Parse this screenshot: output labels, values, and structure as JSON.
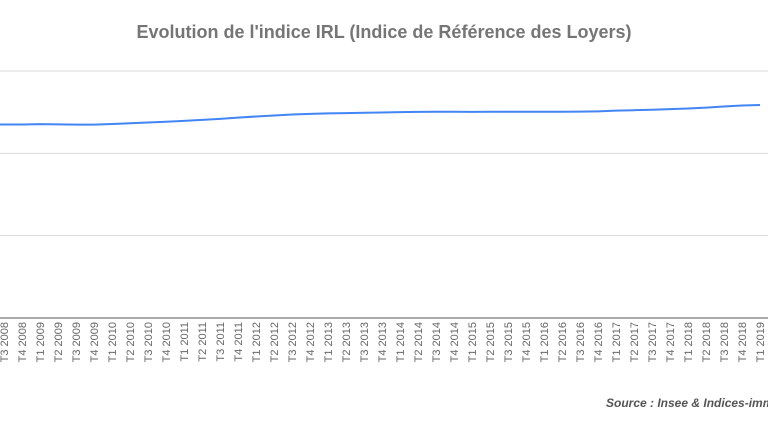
{
  "chart_data": {
    "type": "line",
    "title": "Evolution de l'indice IRL (Indice de Référence des Loyers)",
    "xlabel": "",
    "ylabel": "",
    "ylim": [
      0,
      150
    ],
    "grid": true,
    "legend": "none",
    "line_color": "#4285f4",
    "categories": [
      "T3 2008",
      "T4 2008",
      "T1 2009",
      "T2 2009",
      "T3 2009",
      "T4 2009",
      "T1 2010",
      "T2 2010",
      "T3 2010",
      "T4 2010",
      "T1 2011",
      "T2 2011",
      "T3 2011",
      "T4 2011",
      "T1 2012",
      "T2 2012",
      "T3 2012",
      "T4 2012",
      "T1 2013",
      "T2 2013",
      "T3 2013",
      "T4 2013",
      "T1 2014",
      "T2 2014",
      "T3 2014",
      "T4 2014",
      "T1 2015",
      "T2 2015",
      "T3 2015",
      "T4 2015",
      "T1 2016",
      "T2 2016",
      "T3 2016",
      "T4 2016",
      "T1 2017",
      "T2 2017",
      "T3 2017",
      "T4 2017",
      "T1 2018",
      "T2 2018",
      "T3 2018",
      "T4 2018",
      "T1 2019"
    ],
    "values": [
      117.54,
      117.54,
      117.7,
      117.59,
      117.41,
      117.47,
      117.81,
      118.26,
      118.7,
      119.17,
      119.69,
      120.31,
      120.95,
      121.68,
      122.37,
      122.96,
      123.55,
      123.97,
      124.25,
      124.44,
      124.66,
      124.83,
      125.0,
      125.15,
      125.24,
      125.29,
      125.19,
      125.25,
      125.26,
      125.28,
      125.26,
      125.25,
      125.33,
      125.5,
      125.9,
      126.19,
      126.46,
      126.82,
      127.22,
      127.77,
      128.45,
      129.03,
      129.38
    ],
    "source": "Source : Insee & Indices-imm"
  }
}
